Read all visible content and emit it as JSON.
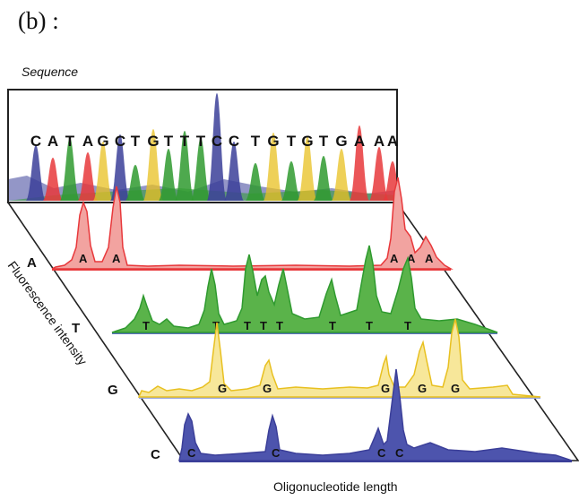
{
  "figure_label": "(b) :",
  "sequence": {
    "title": "Sequence",
    "letters": [
      "C",
      "A",
      "T",
      "A",
      "G",
      "C",
      "T",
      "G",
      "T",
      "T",
      "T",
      "C",
      "C",
      "T",
      "G",
      "T",
      "G",
      "T",
      "G",
      "A",
      "A",
      "A"
    ]
  },
  "axes": {
    "y_label": "Fluorescence intensity",
    "x_label": "Oligonucleotide length"
  },
  "colors": {
    "A": "#e8383b",
    "T": "#2f9a2f",
    "G": "#e8c020",
    "C": "#3b3f99"
  },
  "rows": [
    {
      "base": "A",
      "label": "A",
      "peak_labels": [
        "A",
        "A",
        "A",
        "A",
        "A"
      ]
    },
    {
      "base": "T",
      "label": "T",
      "peak_labels": [
        "T",
        "T",
        "T",
        "T",
        "T",
        "T",
        "T",
        "T"
      ]
    },
    {
      "base": "G",
      "label": "G",
      "peak_labels": [
        "G",
        "G",
        "G",
        "G",
        "G"
      ]
    },
    {
      "base": "C",
      "label": "C",
      "peak_labels": [
        "C",
        "C",
        "C",
        "C"
      ]
    }
  ]
}
